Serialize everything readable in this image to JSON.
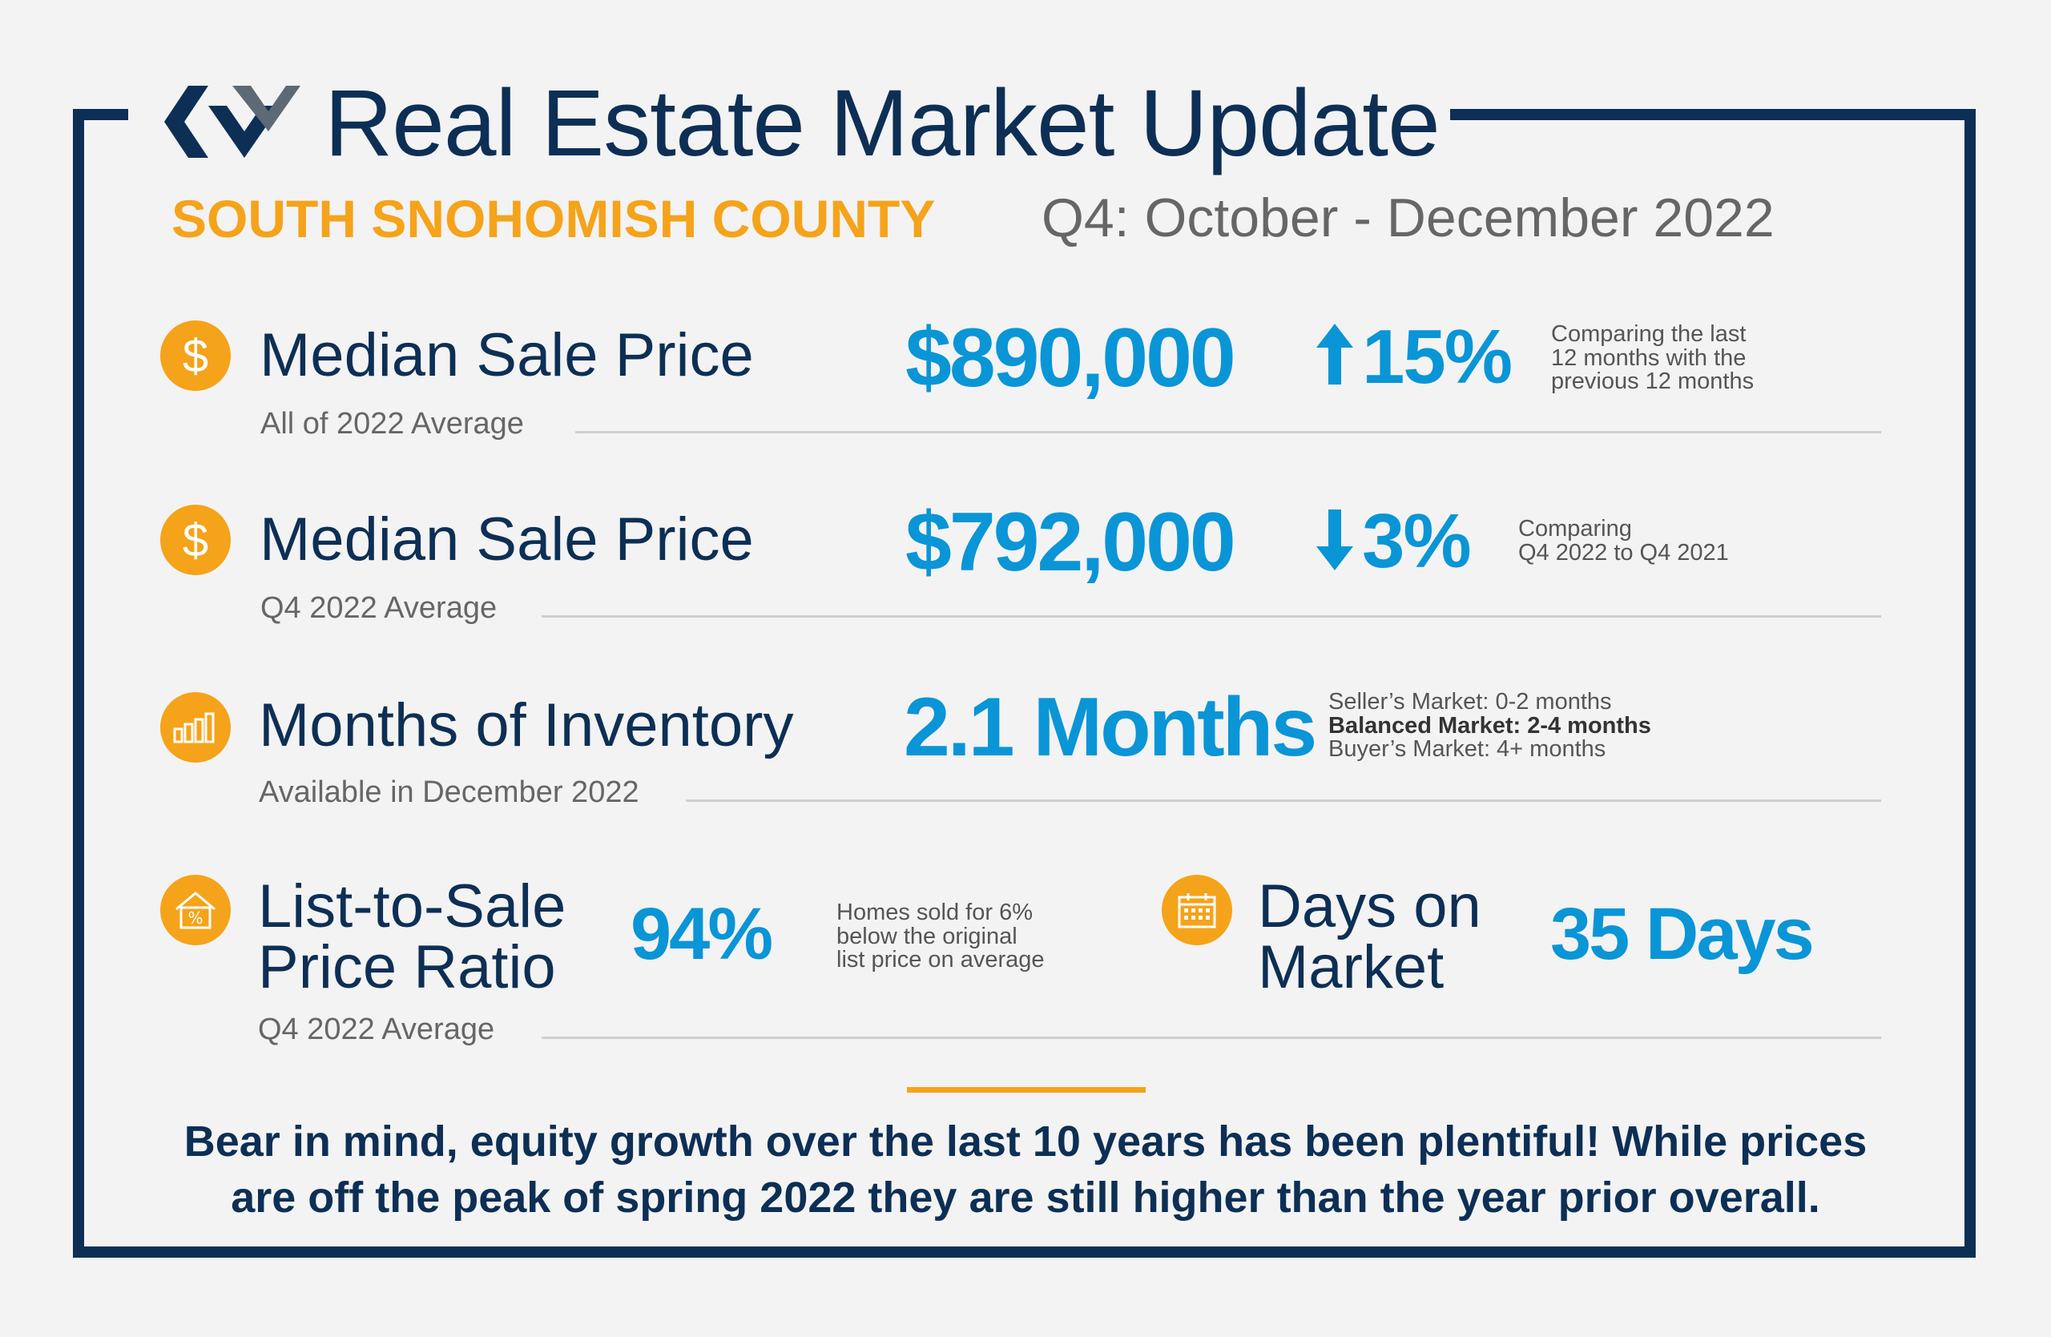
{
  "header": {
    "title": "Real Estate Market Update",
    "region": "SOUTH SNOHOMISH COUNTY",
    "period": "Q4: October - December 2022"
  },
  "metrics": {
    "median_2022": {
      "label": "Median Sale Price",
      "sub": "All of 2022 Average",
      "value": "$890,000",
      "change": "15%",
      "direction": "up",
      "note": [
        "Comparing the last",
        "12 months with the",
        "previous 12 months"
      ]
    },
    "median_q4": {
      "label": "Median Sale Price",
      "sub": "Q4 2022 Average",
      "value": "$792,000",
      "change": "3%",
      "direction": "down",
      "note": [
        "Comparing",
        "Q4 2022 to Q4 2021"
      ]
    },
    "inventory": {
      "label": "Months of Inventory",
      "sub": "Available in December 2022",
      "value": "2.1 Months",
      "note": [
        "Seller’s Market: 0-2 months",
        "Balanced Market: 2-4 months",
        "Buyer’s Market: 4+ months"
      ]
    },
    "list_to_sale": {
      "label_line1": "List-to-Sale",
      "label_line2": "Price Ratio",
      "sub": "Q4 2022 Average",
      "value": "94%",
      "note": [
        "Homes sold for 6%",
        "below the original",
        "list price on average"
      ]
    },
    "days_on_market": {
      "label_line1": "Days on",
      "label_line2": "Market",
      "value": "35 Days"
    }
  },
  "footer": {
    "line1": "Bear in mind, equity growth over the last 10 years has been plentiful! While prices",
    "line2": "are off the peak of spring 2022 they are still higher than the year prior overall."
  },
  "icons": {
    "dollar": "dollar-icon",
    "bar_chart": "bar-chart-icon",
    "house_percent": "house-percent-icon",
    "calendar": "calendar-icon",
    "arrow_up": "arrow-up-icon",
    "arrow_down": "arrow-down-icon"
  },
  "colors": {
    "navy": "#0d2f55",
    "gold": "#f5a31a",
    "blue": "#0a95d6"
  }
}
